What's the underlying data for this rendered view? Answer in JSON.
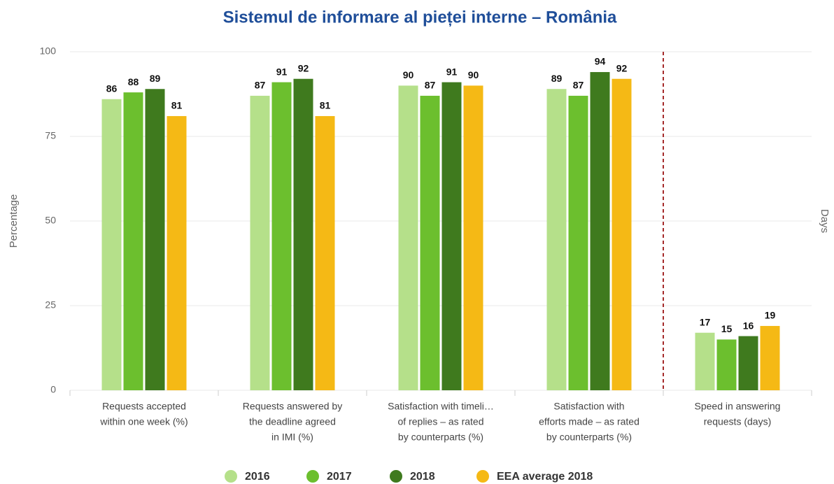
{
  "chart_data": {
    "type": "bar",
    "title": "Sistemul de informare al pieței interne – România",
    "ylabel": "Percentage",
    "y2label": "Days",
    "categories": [
      [
        "Requests accepted",
        "within one week (%)"
      ],
      [
        "Requests answered by",
        "the deadline agreed",
        "in IMI (%)"
      ],
      [
        "Satisfaction with timeli…",
        "of replies – as rated",
        "by counterparts (%)"
      ],
      [
        "Satisfaction with",
        "efforts made – as rated",
        "by counterparts (%)"
      ],
      [
        "Speed in answering",
        "requests (days)"
      ]
    ],
    "series": [
      {
        "name": "2016",
        "color": "#b5e08a",
        "values": [
          86,
          87,
          90,
          89,
          17
        ]
      },
      {
        "name": "2017",
        "color": "#6cbf2e",
        "values": [
          88,
          91,
          87,
          87,
          15
        ]
      },
      {
        "name": "2018",
        "color": "#3f7a1e",
        "values": [
          89,
          92,
          91,
          94,
          16
        ]
      },
      {
        "name": "EEA average 2018",
        "color": "#f5b915",
        "values": [
          81,
          81,
          90,
          92,
          19
        ]
      }
    ],
    "ylim": [
      0,
      100
    ],
    "yticks": [
      0,
      25,
      50,
      75,
      100
    ],
    "grid": true,
    "legend": "bottom"
  }
}
